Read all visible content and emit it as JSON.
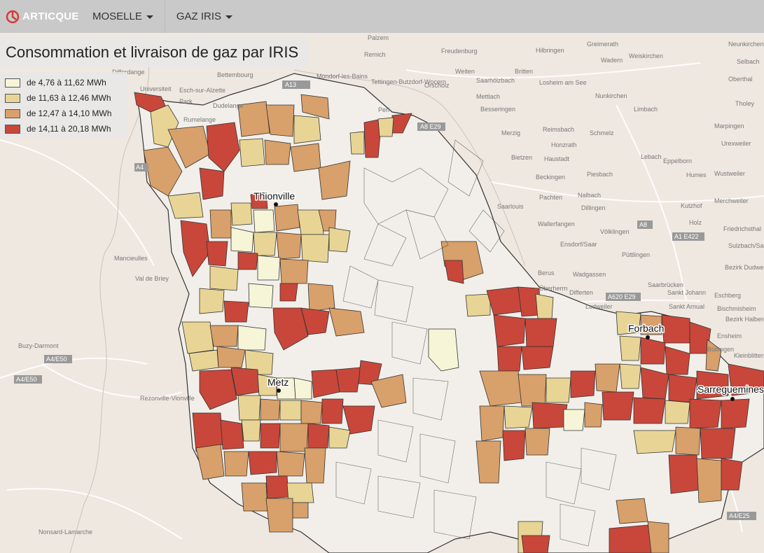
{
  "app": {
    "logo_text": "ARTICQUE"
  },
  "nav": [
    {
      "label": "MOSELLE"
    },
    {
      "label": "GAZ IRIS"
    }
  ],
  "map_title": "Consommation et livraison de gaz par IRIS",
  "legend": [
    {
      "label": "de 4,76 à 11,62 MWh",
      "color": "#f6f5d7"
    },
    {
      "label": "de 11,63 à 12,46 MWh",
      "color": "#e8d595"
    },
    {
      "label": "de 12,47 à 14,10 MWh",
      "color": "#d8a06a"
    },
    {
      "label": "de 14,11 à 20,18 MWh",
      "color": "#c8473a"
    }
  ],
  "cities": [
    "Thionville",
    "Metz",
    "Forbach",
    "Sarreguemines"
  ],
  "basemap_labels": [
    "Differdange",
    "Bettembourg",
    "Esch-sur-Alzette",
    "Dudelange",
    "Rumelange",
    "Universiteit",
    "Park",
    "Palzem",
    "Remich",
    "Freudenburg",
    "Tettingen-Butzdorf-Wocern",
    "Orscholz",
    "Saarhölzbach",
    "Mondorf-les-Bains",
    "Perl",
    "Mettlach",
    "Besseringen",
    "Merzig",
    "Losheim am See",
    "Hilbringen",
    "Greimerath",
    "Weiskirchen",
    "Wadern",
    "Britten",
    "Weiten",
    "Bietzen",
    "Haustadt",
    "Honzrath",
    "Reimsbach",
    "Schmelz",
    "Nunkirchen",
    "Limbach",
    "Lebach",
    "Eppelborn",
    "Beckingen",
    "Piesbach",
    "Nalbach",
    "Pachten",
    "Dillingen",
    "Saarlouis",
    "Wallerfangen",
    "Ensdorf/Saar",
    "Püttlingen",
    "Völklingen",
    "Wadgassen",
    "Überherrn",
    "Berus",
    "Differten",
    "Ludweiler",
    "Saarbrücken",
    "Sankt Johann",
    "Sankt Arnual",
    "Bischmisheim",
    "Eschberg",
    "Bezirk Halberg",
    "Ensheim",
    "Bübingen",
    "Kleinblittersdorf",
    "Tholey",
    "Marpingen",
    "Urexweiler",
    "Humes",
    "Wustweiler",
    "Merchweiler",
    "Friedrichsthal",
    "Sulzbach/Saar",
    "Bezirk Dudweiler",
    "Kutzhof",
    "Holz",
    "Neunkirchen / Nahe",
    "Selbach",
    "Oberthal",
    "Mancieulles",
    "Val de Briey",
    "Buzy-Darmont",
    "Rezonville-Vionville",
    "Nonsard-Lamarche"
  ],
  "roads": [
    "A13",
    "A8 E29",
    "A4",
    "A8",
    "A1 E422",
    "A620 E29",
    "A4/E50",
    "A4/E25"
  ]
}
